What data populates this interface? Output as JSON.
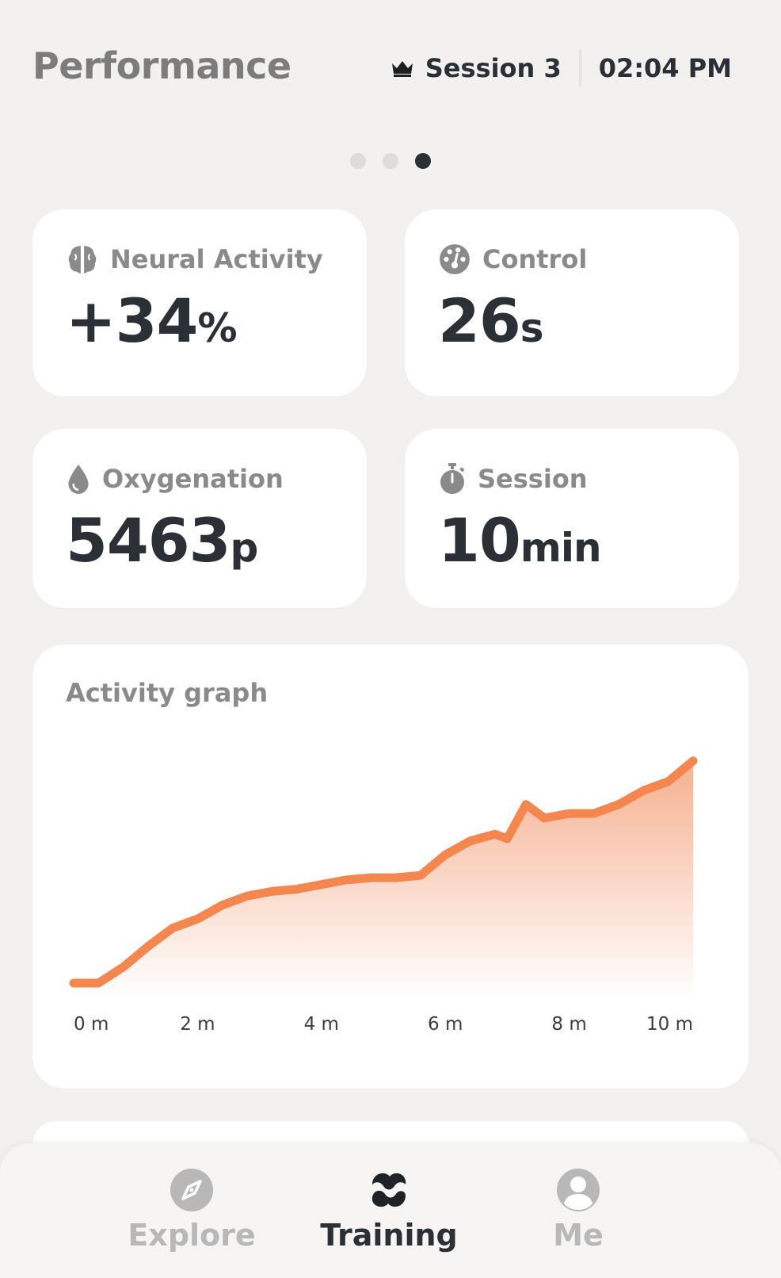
{
  "header": {
    "title": "Performance",
    "session_label": "Session 3",
    "time": "02:04 PM"
  },
  "pager": {
    "count": 3,
    "active_index": 2
  },
  "stats": [
    {
      "label": "Neural Activity",
      "value": "+34",
      "unit": "%",
      "icon": "brain-icon"
    },
    {
      "label": "Control",
      "value": "26",
      "unit": "s",
      "icon": "gauge-icon"
    },
    {
      "label": "Oxygenation",
      "value": "5463",
      "unit": "p",
      "icon": "drop-icon"
    },
    {
      "label": "Session",
      "value": "10",
      "unit": "min",
      "icon": "stopwatch-icon"
    }
  ],
  "graph": {
    "title": "Activity graph"
  },
  "chart_data": {
    "type": "area",
    "x_ticks": [
      "0 m",
      "2 m",
      "4 m",
      "6 m",
      "8 m",
      "10 m"
    ],
    "x": [
      0,
      0.4,
      0.8,
      1.2,
      1.6,
      2.0,
      2.4,
      2.8,
      3.2,
      3.6,
      4.0,
      4.4,
      4.8,
      5.2,
      5.6,
      6.0,
      6.4,
      6.8,
      7.0,
      7.3,
      7.6,
      8.0,
      8.4,
      8.8,
      9.2,
      9.6,
      10.0
    ],
    "y": [
      0.0,
      0.0,
      0.07,
      0.16,
      0.24,
      0.28,
      0.34,
      0.38,
      0.4,
      0.41,
      0.43,
      0.45,
      0.46,
      0.46,
      0.47,
      0.56,
      0.62,
      0.65,
      0.63,
      0.78,
      0.72,
      0.74,
      0.74,
      0.78,
      0.84,
      0.88,
      0.97
    ],
    "ylim": [
      0,
      1
    ],
    "color": "#f4874f",
    "fill_top": "#f4a37c",
    "grid": false,
    "legend": "none"
  },
  "tabbar": {
    "items": [
      {
        "label": "Explore",
        "icon": "compass-icon",
        "active": false
      },
      {
        "label": "Training",
        "icon": "training-icon",
        "active": true
      },
      {
        "label": "Me",
        "icon": "user-icon",
        "active": false
      }
    ]
  }
}
